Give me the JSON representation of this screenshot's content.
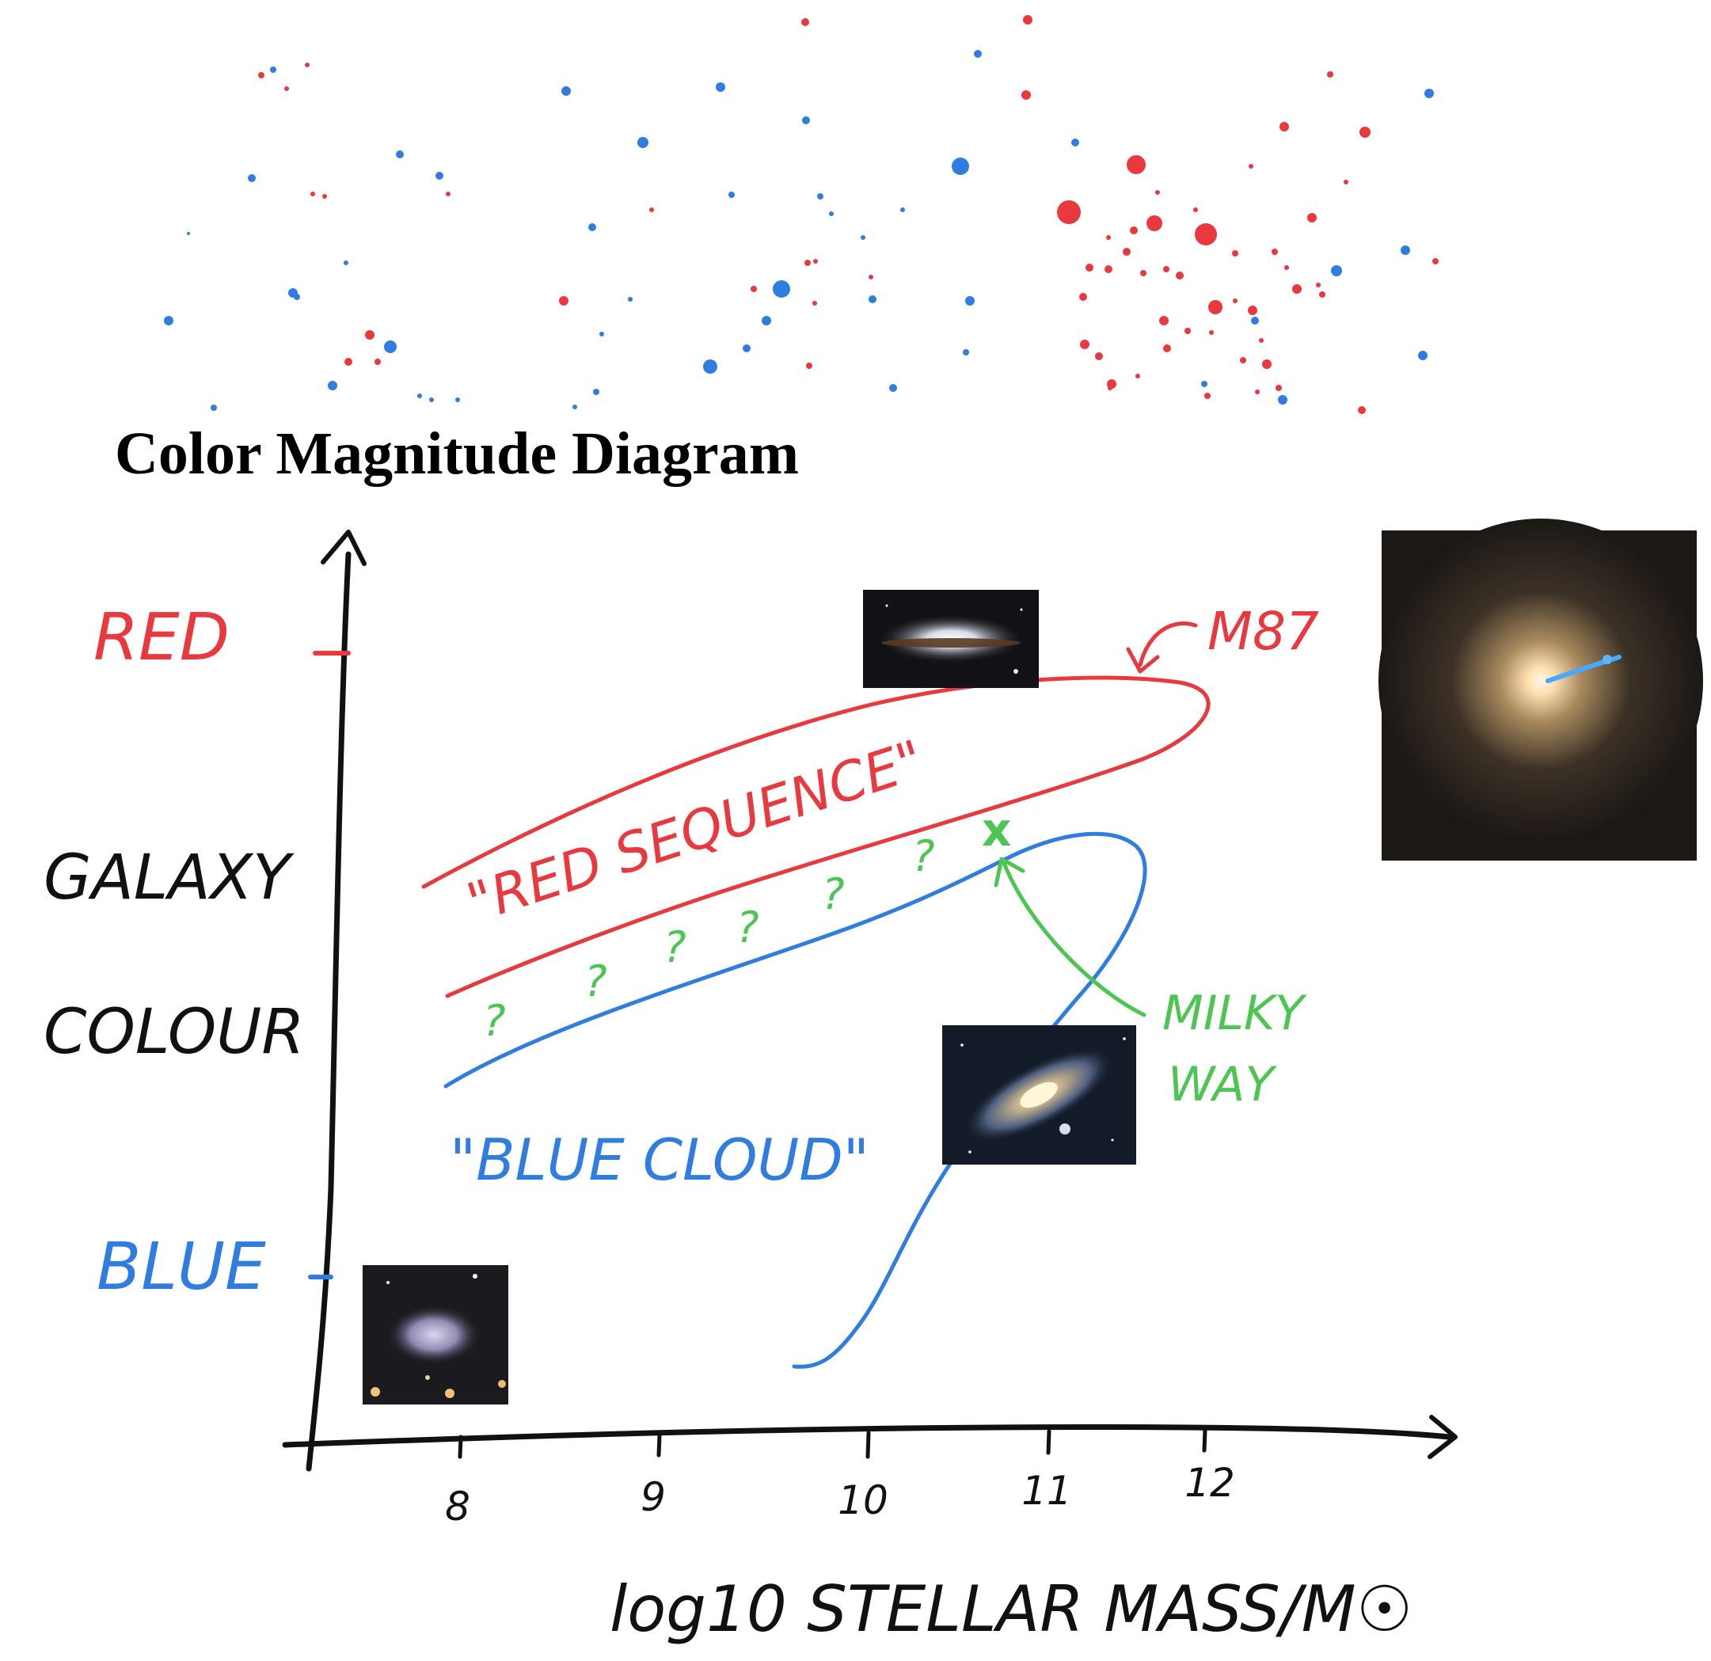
{
  "title": "Color Magnitude Diagram",
  "colors": {
    "red": "#e8393f",
    "blue": "#2f7de1",
    "green": "#4cc553",
    "ink": "#111111"
  },
  "y_axis": {
    "label_line1": "GALAXY",
    "label_line2": "COLOUR",
    "top_tick": "RED",
    "bottom_tick": "BLUE"
  },
  "x_axis": {
    "label": "log10 STELLAR MASS/M☉",
    "ticks": [
      "8",
      "9",
      "10",
      "11",
      "12"
    ]
  },
  "regions": {
    "red_sequence": "\"RED SEQUENCE\"",
    "blue_cloud": "\"BLUE CLOUD\""
  },
  "annotations": {
    "m87": "M87",
    "milky_way_line1": "MILKY",
    "milky_way_line2": "WAY",
    "question": "?",
    "milky_way_marker": "x"
  },
  "images": [
    {
      "name": "sombrero-galaxy-photo",
      "type": "edge-on spiral"
    },
    {
      "name": "m87-elliptical-photo",
      "type": "giant elliptical with jet"
    },
    {
      "name": "andromeda-spiral-photo",
      "type": "spiral"
    },
    {
      "name": "dwarf-irregular-photo",
      "type": "dwarf irregular"
    }
  ]
}
